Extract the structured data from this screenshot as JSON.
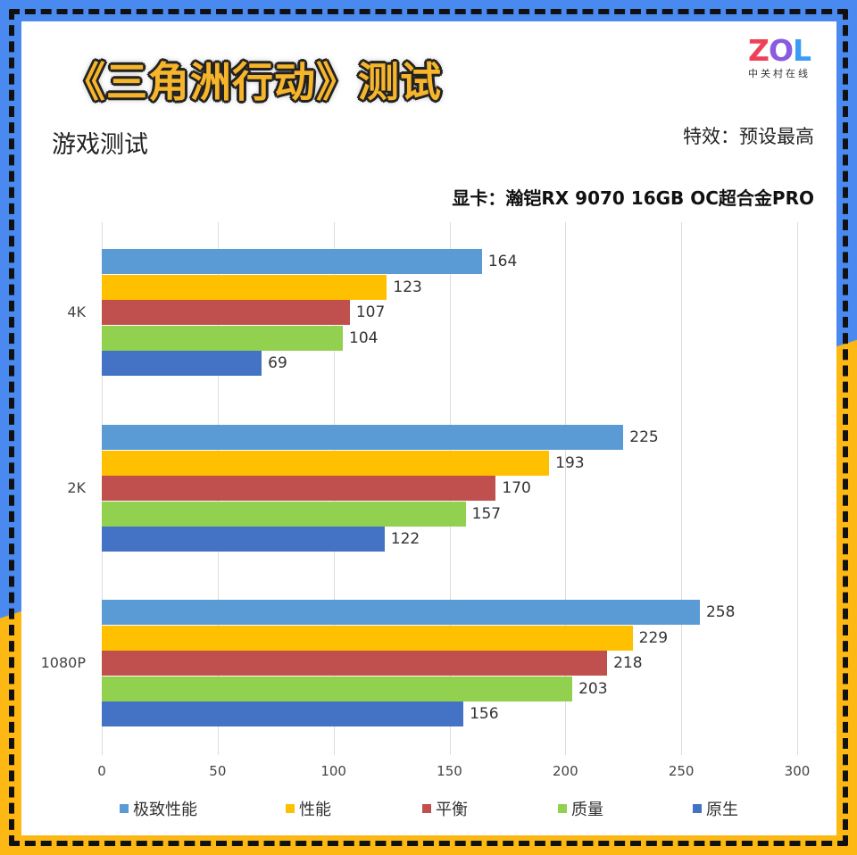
{
  "header": {
    "title": "《三角洲行动》测试",
    "subtitle": "游戏测试",
    "effects": "特效：预设最高",
    "gpu": "显卡：瀚铠RX 9070 16GB OC超合金PRO"
  },
  "logo": {
    "mark_z": "Z",
    "mark_o": "O",
    "mark_l": "L",
    "sub": "中关村在线"
  },
  "colors": {
    "frame_blue": "#4a8af0",
    "frame_yellow": "#fdb813",
    "series": [
      "#5b9bd5",
      "#ffc000",
      "#c0504d",
      "#92d050",
      "#4472c4"
    ]
  },
  "chart_data": {
    "type": "bar",
    "orientation": "horizontal",
    "title": "《三角洲行动》测试",
    "subtitle": "游戏测试",
    "categories": [
      "4K",
      "2K",
      "1080P"
    ],
    "series": [
      {
        "name": "极致性能",
        "color": "#5b9bd5",
        "values": [
          164,
          225,
          258
        ]
      },
      {
        "name": "性能",
        "color": "#ffc000",
        "values": [
          123,
          193,
          229
        ]
      },
      {
        "name": "平衡",
        "color": "#c0504d",
        "values": [
          107,
          170,
          218
        ]
      },
      {
        "name": "质量",
        "color": "#92d050",
        "values": [
          104,
          157,
          203
        ]
      },
      {
        "name": "原生",
        "color": "#4472c4",
        "values": [
          69,
          122,
          156
        ]
      }
    ],
    "xlabel": "",
    "ylabel": "",
    "xlim": [
      0,
      300
    ],
    "xticks": [
      "0",
      "50",
      "100",
      "150",
      "200",
      "250",
      "300"
    ],
    "grid": true,
    "legend_position": "bottom",
    "annotations": [
      "特效：预设最高",
      "显卡：瀚铠RX 9070 16GB OC超合金PRO"
    ]
  }
}
